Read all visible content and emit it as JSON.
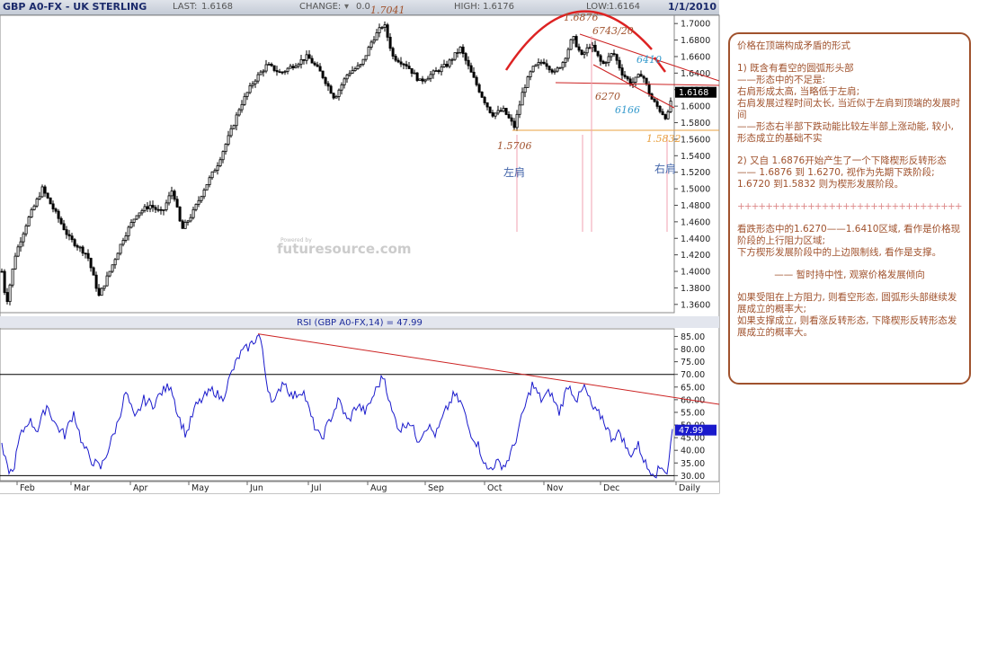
{
  "header": {
    "symbol": "GBP A0-FX - UK STERLING",
    "last_label": "LAST:",
    "last_value": "1.6168",
    "change_label": "CHANGE:",
    "change_value": "0.0",
    "high_label": "HIGH:",
    "high_value": "1.6176",
    "low_label": "LOW:",
    "low_value": "1.6164",
    "date": "1/1/2010"
  },
  "chart_data": [
    {
      "type": "candlestick",
      "title": "GBP A0-FX - UK STERLING",
      "x_labels": [
        "Feb",
        "Mar",
        "Apr",
        "May",
        "Jun",
        "Jul",
        "Aug",
        "Sep",
        "Oct",
        "Nov",
        "Dec",
        "Daily"
      ],
      "ylim": [
        1.35,
        1.71
      ],
      "y_ticks": [
        "1.7000",
        "1.6800",
        "1.6600",
        "1.6400",
        "1.6200",
        "1.6000",
        "1.5800",
        "1.5600",
        "1.5400",
        "1.5200",
        "1.5000",
        "1.4800",
        "1.4600",
        "1.4400",
        "1.4200",
        "1.4000",
        "1.3800",
        "1.3600"
      ],
      "series": [
        {
          "values": [
            {
              "x": 0,
              "y": 1.4
            },
            {
              "x": 5,
              "y": 1.36
            },
            {
              "x": 15,
              "y": 1.42
            },
            {
              "x": 28,
              "y": 1.46
            },
            {
              "x": 45,
              "y": 1.5
            },
            {
              "x": 60,
              "y": 1.47
            },
            {
              "x": 75,
              "y": 1.44
            },
            {
              "x": 95,
              "y": 1.42
            },
            {
              "x": 108,
              "y": 1.37
            },
            {
              "x": 120,
              "y": 1.4
            },
            {
              "x": 135,
              "y": 1.44
            },
            {
              "x": 150,
              "y": 1.47
            },
            {
              "x": 165,
              "y": 1.48
            },
            {
              "x": 178,
              "y": 1.47
            },
            {
              "x": 190,
              "y": 1.5
            },
            {
              "x": 200,
              "y": 1.45
            },
            {
              "x": 212,
              "y": 1.47
            },
            {
              "x": 225,
              "y": 1.5
            },
            {
              "x": 240,
              "y": 1.53
            },
            {
              "x": 255,
              "y": 1.57
            },
            {
              "x": 265,
              "y": 1.6
            },
            {
              "x": 280,
              "y": 1.63
            },
            {
              "x": 295,
              "y": 1.65
            },
            {
              "x": 310,
              "y": 1.64
            },
            {
              "x": 325,
              "y": 1.65
            },
            {
              "x": 340,
              "y": 1.66
            },
            {
              "x": 355,
              "y": 1.64
            },
            {
              "x": 370,
              "y": 1.61
            },
            {
              "x": 385,
              "y": 1.64
            },
            {
              "x": 400,
              "y": 1.65
            },
            {
              "x": 412,
              "y": 1.68
            },
            {
              "x": 425,
              "y": 1.7
            },
            {
              "x": 435,
              "y": 1.66
            },
            {
              "x": 450,
              "y": 1.65
            },
            {
              "x": 465,
              "y": 1.63
            },
            {
              "x": 480,
              "y": 1.64
            },
            {
              "x": 495,
              "y": 1.65
            },
            {
              "x": 510,
              "y": 1.67
            },
            {
              "x": 522,
              "y": 1.64
            },
            {
              "x": 535,
              "y": 1.61
            },
            {
              "x": 545,
              "y": 1.59
            },
            {
              "x": 558,
              "y": 1.595
            },
            {
              "x": 570,
              "y": 1.575
            },
            {
              "x": 580,
              "y": 1.62
            },
            {
              "x": 590,
              "y": 1.645
            },
            {
              "x": 602,
              "y": 1.655
            },
            {
              "x": 615,
              "y": 1.64
            },
            {
              "x": 625,
              "y": 1.655
            },
            {
              "x": 635,
              "y": 1.684
            },
            {
              "x": 645,
              "y": 1.66
            },
            {
              "x": 655,
              "y": 1.675
            },
            {
              "x": 668,
              "y": 1.65
            },
            {
              "x": 680,
              "y": 1.665
            },
            {
              "x": 690,
              "y": 1.64
            },
            {
              "x": 700,
              "y": 1.627
            },
            {
              "x": 712,
              "y": 1.64
            },
            {
              "x": 722,
              "y": 1.61
            },
            {
              "x": 732,
              "y": 1.595
            },
            {
              "x": 740,
              "y": 1.585
            },
            {
              "x": 746,
              "y": 1.617
            }
          ]
        }
      ],
      "price_label": "1.6168",
      "annotations": {
        "high_1": "1.7041",
        "high_2": "1.6876",
        "wedge_top": "6743/20",
        "wedge_a": "6410",
        "wedge_b": "6270",
        "wedge_c": "6166",
        "low_left": "1.5706",
        "low_right": "1.5832",
        "left_shoulder": "左肩",
        "right_shoulder": "右肩"
      },
      "watermark": "futuresource.com",
      "watermark_small": "Powered by"
    },
    {
      "type": "line",
      "title": "RSI (GBP A0-FX,14) = 47.99",
      "ylim": [
        28,
        88
      ],
      "y_ticks": [
        "85.00",
        "80.00",
        "75.00",
        "70.00",
        "65.00",
        "60.00",
        "55.00",
        "50.00",
        "45.00",
        "40.00",
        "35.00",
        "30.00"
      ],
      "current_value": "47.99",
      "reference_lines": [
        70,
        30
      ],
      "series": [
        {
          "color": "#1a1acc",
          "values": [
            {
              "x": 0,
              "y": 41
            },
            {
              "x": 6,
              "y": 33
            },
            {
              "x": 12,
              "y": 31
            },
            {
              "x": 20,
              "y": 45
            },
            {
              "x": 30,
              "y": 52
            },
            {
              "x": 40,
              "y": 48
            },
            {
              "x": 50,
              "y": 58
            },
            {
              "x": 60,
              "y": 50
            },
            {
              "x": 70,
              "y": 46
            },
            {
              "x": 80,
              "y": 55
            },
            {
              "x": 90,
              "y": 42
            },
            {
              "x": 100,
              "y": 36
            },
            {
              "x": 110,
              "y": 33
            },
            {
              "x": 118,
              "y": 40
            },
            {
              "x": 128,
              "y": 50
            },
            {
              "x": 138,
              "y": 63
            },
            {
              "x": 148,
              "y": 52
            },
            {
              "x": 158,
              "y": 60
            },
            {
              "x": 168,
              "y": 58
            },
            {
              "x": 178,
              "y": 63
            },
            {
              "x": 188,
              "y": 66
            },
            {
              "x": 196,
              "y": 54
            },
            {
              "x": 205,
              "y": 46
            },
            {
              "x": 215,
              "y": 57
            },
            {
              "x": 225,
              "y": 61
            },
            {
              "x": 235,
              "y": 64
            },
            {
              "x": 245,
              "y": 60
            },
            {
              "x": 255,
              "y": 70
            },
            {
              "x": 265,
              "y": 78
            },
            {
              "x": 275,
              "y": 81
            },
            {
              "x": 287,
              "y": 86
            },
            {
              "x": 295,
              "y": 66
            },
            {
              "x": 303,
              "y": 58
            },
            {
              "x": 313,
              "y": 68
            },
            {
              "x": 323,
              "y": 61
            },
            {
              "x": 335,
              "y": 64
            },
            {
              "x": 345,
              "y": 52
            },
            {
              "x": 355,
              "y": 44
            },
            {
              "x": 365,
              "y": 52
            },
            {
              "x": 375,
              "y": 60
            },
            {
              "x": 385,
              "y": 51
            },
            {
              "x": 395,
              "y": 58
            },
            {
              "x": 405,
              "y": 55
            },
            {
              "x": 415,
              "y": 63
            },
            {
              "x": 425,
              "y": 70
            },
            {
              "x": 433,
              "y": 56
            },
            {
              "x": 443,
              "y": 48
            },
            {
              "x": 453,
              "y": 52
            },
            {
              "x": 463,
              "y": 44
            },
            {
              "x": 473,
              "y": 50
            },
            {
              "x": 483,
              "y": 46
            },
            {
              "x": 493,
              "y": 55
            },
            {
              "x": 503,
              "y": 62
            },
            {
              "x": 512,
              "y": 58
            },
            {
              "x": 520,
              "y": 48
            },
            {
              "x": 530,
              "y": 42
            },
            {
              "x": 540,
              "y": 32
            },
            {
              "x": 550,
              "y": 35
            },
            {
              "x": 560,
              "y": 34
            },
            {
              "x": 570,
              "y": 42
            },
            {
              "x": 580,
              "y": 55
            },
            {
              "x": 590,
              "y": 66
            },
            {
              "x": 600,
              "y": 60
            },
            {
              "x": 610,
              "y": 63
            },
            {
              "x": 620,
              "y": 55
            },
            {
              "x": 630,
              "y": 66
            },
            {
              "x": 640,
              "y": 60
            },
            {
              "x": 648,
              "y": 65
            },
            {
              "x": 658,
              "y": 56
            },
            {
              "x": 668,
              "y": 53
            },
            {
              "x": 678,
              "y": 45
            },
            {
              "x": 688,
              "y": 47
            },
            {
              "x": 698,
              "y": 38
            },
            {
              "x": 708,
              "y": 42
            },
            {
              "x": 718,
              "y": 33
            },
            {
              "x": 728,
              "y": 31
            },
            {
              "x": 735,
              "y": 34
            },
            {
              "x": 740,
              "y": 31
            },
            {
              "x": 746,
              "y": 48
            }
          ]
        }
      ]
    }
  ],
  "note": {
    "title": "价格在顶端构成矛盾的形式",
    "p1": [
      "1) 既含有看空的圆弧形头部",
      "——形态中的不足是:",
      "右肩形成太高, 当略低于左肩;",
      "右肩发展过程时间太长, 当近似于左肩到顶端的发展时间",
      "——形态右半部下跌动能比较左半部上涨动能, 较小, 形态成立的基础不实"
    ],
    "p2": [
      "2) 又自 1.6876开始产生了一个下降楔形反转形态",
      "—— 1.6876 到 1.6270, 视作为先期下跌阶段; 1.6720 到1.5832 则为楔形发展阶段。"
    ],
    "separator": "++++++++++++++++++++++++++++++++++++++++",
    "p3": [
      "看跌形态中的1.6270——1.6410区域, 看作是价格现阶段的上行阻力区域;",
      "下方楔形发展阶段中的上边限制线, 看作是支撑。"
    ],
    "p4": [
      "—— 暂时持中性, 观察价格发展倾向"
    ],
    "p5": [
      "如果受阻在上方阻力, 则看空形态, 圆弧形头部继续发展成立的概率大;",
      "如果支撑成立, 则看涨反转形态, 下降楔形反转形态发展成立的概率大。"
    ]
  },
  "colors": {
    "candle": "#000000",
    "rsi": "#1a1acc",
    "trend": "#cc2222",
    "support": "#e8a040",
    "arc": "#dd2222",
    "note": "#a0522d",
    "shoulder": "#4466aa",
    "ann_blue": "#3399cc",
    "ann_brown": "#a0522d"
  }
}
